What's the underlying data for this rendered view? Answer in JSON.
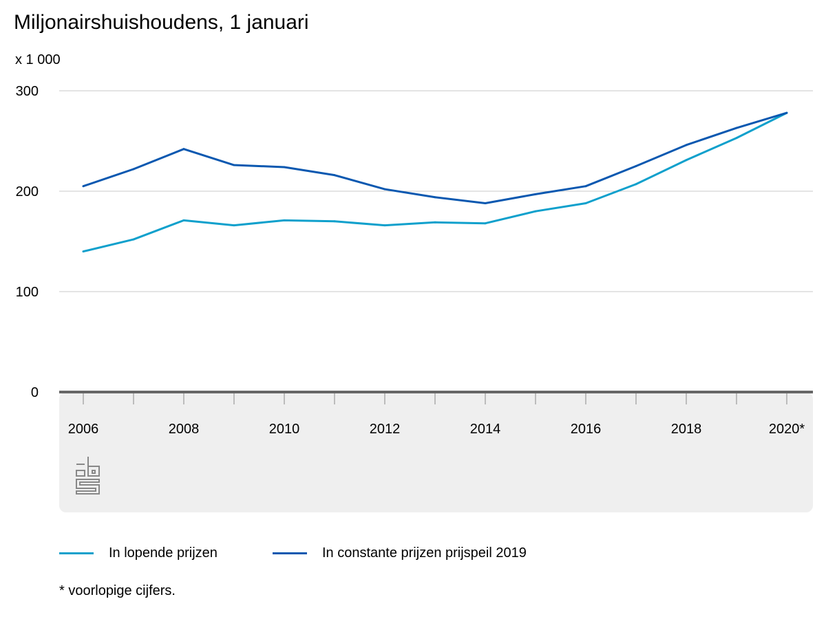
{
  "chart_data": {
    "type": "line",
    "title": "Miljonairshuishoudens, 1 januari",
    "ylabel": "x 1 000",
    "xlabel": "",
    "ylim": [
      0,
      300
    ],
    "yticks": [
      0,
      100,
      200,
      300
    ],
    "x": [
      2006,
      2007,
      2008,
      2009,
      2010,
      2011,
      2012,
      2013,
      2014,
      2015,
      2016,
      2017,
      2018,
      2019,
      2020
    ],
    "xtick_labels": [
      "2006",
      "2008",
      "2010",
      "2012",
      "2014",
      "2016",
      "2018",
      "2020*"
    ],
    "grid": true,
    "legend_position": "bottom",
    "series": [
      {
        "name": "In lopende prijzen",
        "color": "#0fa0cc",
        "values": [
          140,
          152,
          171,
          166,
          171,
          170,
          166,
          169,
          168,
          180,
          188,
          207,
          231,
          253,
          278
        ]
      },
      {
        "name": "In constante prijzen prijspeil 2019",
        "color": "#0a58b0",
        "values": [
          205,
          222,
          242,
          226,
          224,
          216,
          202,
          194,
          188,
          197,
          205,
          225,
          246,
          263,
          278
        ]
      }
    ],
    "footnote": "* voorlopige cijfers."
  }
}
